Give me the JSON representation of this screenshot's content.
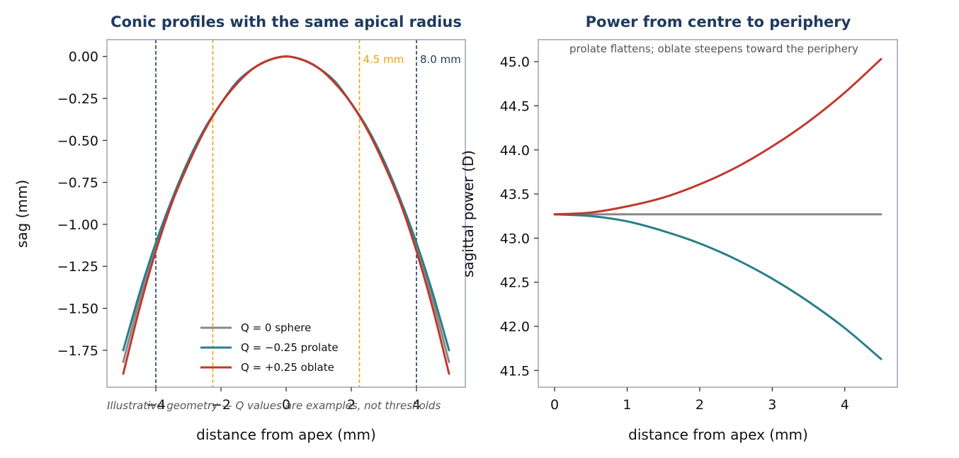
{
  "colors": {
    "sphere": "#888888",
    "prolate": "#2a7f8a",
    "oblate": "#c0392b",
    "zone_inner": "#e8a317",
    "zone_outer": "#1f3a5f",
    "title": "#1f3a5f",
    "frame": "#9aa4b8"
  },
  "chart_data": [
    {
      "type": "line",
      "title": "Conic profiles with the same apical radius",
      "xlabel": "distance from apex (mm)",
      "ylabel": "sag (mm)",
      "xlim": [
        -5.5,
        5.5
      ],
      "ylim": [
        -1.97,
        0.1
      ],
      "xticks": [
        -4,
        -2,
        0,
        2,
        4
      ],
      "xtick_labels": [
        "−4",
        "−2",
        "0",
        "2",
        "4"
      ],
      "yticks": [
        0.0,
        -0.25,
        -0.5,
        -0.75,
        -1.0,
        -1.25,
        -1.5,
        -1.75
      ],
      "ytick_labels": [
        "0.00",
        "−0.25",
        "−0.50",
        "−0.75",
        "−1.00",
        "−1.25",
        "−1.50",
        "−1.75"
      ],
      "grid": false,
      "legend_position": "lower-center",
      "series": [
        {
          "name": "Q = 0  sphere",
          "color_key": "sphere",
          "x": [
            -5,
            -4.5,
            -4,
            -3.5,
            -3,
            -2.5,
            -2,
            -1.5,
            -1,
            -0.5,
            0,
            0.5,
            1,
            1.5,
            2,
            2.5,
            3,
            3.5,
            4,
            4.5,
            5
          ],
          "y": [
            -1.82,
            -1.45,
            -1.13,
            -0.86,
            -0.63,
            -0.43,
            -0.28,
            -0.15,
            -0.07,
            -0.02,
            0,
            -0.02,
            -0.07,
            -0.15,
            -0.28,
            -0.43,
            -0.63,
            -0.86,
            -1.13,
            -1.45,
            -1.82
          ]
        },
        {
          "name": "Q = −0.25  prolate",
          "color_key": "prolate",
          "x": [
            -5,
            -4.5,
            -4,
            -3.5,
            -3,
            -2.5,
            -2,
            -1.5,
            -1,
            -0.5,
            0,
            0.5,
            1,
            1.5,
            2,
            2.5,
            3,
            3.5,
            4,
            4.5,
            5
          ],
          "y": [
            -1.75,
            -1.41,
            -1.11,
            -0.85,
            -0.62,
            -0.43,
            -0.28,
            -0.15,
            -0.07,
            -0.02,
            0,
            -0.02,
            -0.07,
            -0.15,
            -0.28,
            -0.43,
            -0.62,
            -0.85,
            -1.11,
            -1.41,
            -1.75
          ]
        },
        {
          "name": "Q = +0.25  oblate",
          "color_key": "oblate",
          "x": [
            -5,
            -4.5,
            -4,
            -3.5,
            -3,
            -2.5,
            -2,
            -1.5,
            -1,
            -0.5,
            0,
            0.5,
            1,
            1.5,
            2,
            2.5,
            3,
            3.5,
            4,
            4.5,
            5
          ],
          "y": [
            -1.89,
            -1.5,
            -1.16,
            -0.87,
            -0.64,
            -0.44,
            -0.28,
            -0.16,
            -0.07,
            -0.02,
            0,
            -0.02,
            -0.07,
            -0.16,
            -0.28,
            -0.44,
            -0.64,
            -0.87,
            -1.16,
            -1.5,
            -1.89
          ]
        }
      ],
      "vlines": [
        {
          "x": -4,
          "color_key": "zone_outer"
        },
        {
          "x": -2.25,
          "color_key": "zone_inner"
        },
        {
          "x": 2.25,
          "color_key": "zone_inner",
          "label": "4.5 mm"
        },
        {
          "x": 4,
          "color_key": "zone_outer",
          "label": "8.0 mm"
        }
      ],
      "footnote": "Illustrative geometry — Q values are examples, not thresholds"
    },
    {
      "type": "line",
      "title": "Power from centre to periphery",
      "xlabel": "distance from apex (mm)",
      "ylabel": "sagittal power (D)",
      "xlim": [
        -0.225,
        4.725
      ],
      "ylim": [
        41.31,
        45.25
      ],
      "xticks": [
        0,
        1,
        2,
        3,
        4
      ],
      "xtick_labels": [
        "0",
        "1",
        "2",
        "3",
        "4"
      ],
      "yticks": [
        41.5,
        42.0,
        42.5,
        43.0,
        43.5,
        44.0,
        44.5,
        45.0
      ],
      "ytick_labels": [
        "41.5",
        "42.0",
        "42.5",
        "43.0",
        "43.5",
        "44.0",
        "44.5",
        "45.0"
      ],
      "grid": false,
      "annotation": "prolate flattens; oblate steepens toward the periphery",
      "series": [
        {
          "name": "Q = 0  sphere",
          "color_key": "sphere",
          "x": [
            0,
            4.5
          ],
          "y": [
            43.27,
            43.27
          ]
        },
        {
          "name": "Q = −0.25  prolate",
          "color_key": "prolate",
          "x": [
            0,
            0.5,
            1,
            1.5,
            2,
            2.5,
            3,
            3.5,
            4,
            4.5
          ],
          "y": [
            43.27,
            43.25,
            43.19,
            43.08,
            42.94,
            42.76,
            42.54,
            42.28,
            41.98,
            41.63
          ]
        },
        {
          "name": "Q = +0.25  oblate",
          "color_key": "oblate",
          "x": [
            0,
            0.5,
            1,
            1.5,
            2,
            2.5,
            3,
            3.5,
            4,
            4.5
          ],
          "y": [
            43.27,
            43.29,
            43.36,
            43.46,
            43.61,
            43.8,
            44.04,
            44.32,
            44.65,
            45.03
          ]
        }
      ]
    }
  ]
}
